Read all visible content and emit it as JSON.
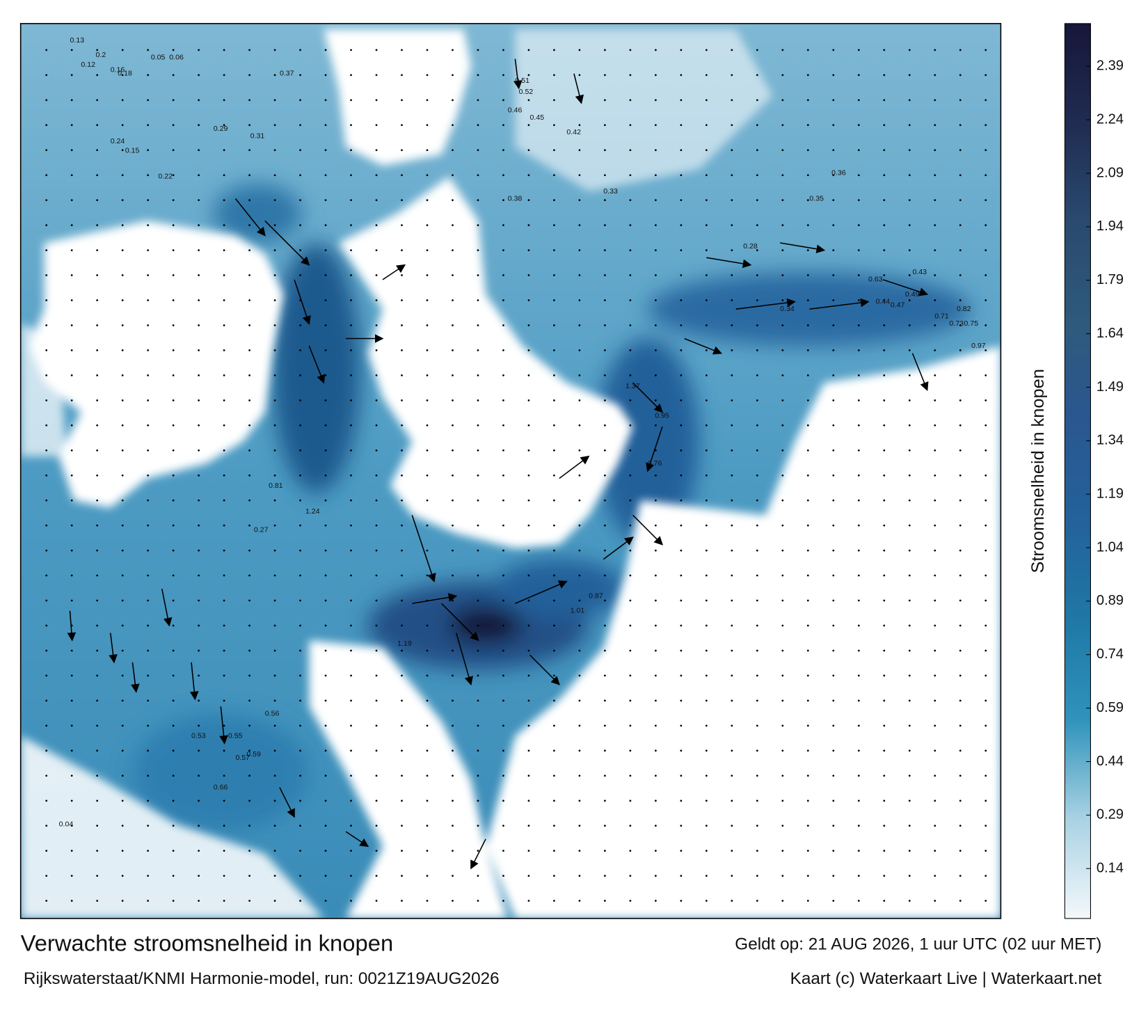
{
  "title": "Verwachte stroomsnelheid in knopen",
  "subtitle": "Rijkswaterstaat/KNMI Harmonie-model, run: 0021Z19AUG2026",
  "valid_time": "Geldt op: 21 AUG 2026, 1 uur UTC (02 uur MET)",
  "credit": "Kaart (c) Waterkaart Live | Waterkaart.net",
  "colorbar": {
    "label": "Stroomsnelheid in knopen",
    "lim": [
      0,
      2.51
    ],
    "ticks": [
      0.14,
      0.29,
      0.44,
      0.59,
      0.74,
      0.89,
      1.04,
      1.19,
      1.34,
      1.49,
      1.64,
      1.79,
      1.94,
      2.09,
      2.24,
      2.39
    ],
    "colors": [
      "#f4f8fb",
      "#a9d2e3",
      "#2f93bb",
      "#1f78a6",
      "#23629a",
      "#2a5790",
      "#2e5a7c",
      "#2a4a6f",
      "#202c52",
      "#16163a"
    ]
  },
  "map": {
    "labels": [
      0.13,
      0.2,
      0.12,
      0.16,
      0.18,
      0.05,
      0.06,
      0.24,
      0.15,
      0.22,
      0.29,
      0.31,
      0.37,
      0.33,
      0.38,
      0.51,
      0.52,
      0.46,
      0.42,
      0.45,
      0.36,
      0.35,
      0.28,
      0.34,
      0.43,
      0.44,
      0.47,
      0.49,
      0.63,
      0.71,
      0.73,
      0.82,
      0.75,
      0.97,
      1.37,
      1.24,
      0.81,
      0.95,
      0.76,
      1.19,
      1.01,
      0.87,
      0.66,
      0.53,
      0.56,
      0.55,
      0.57,
      0.59,
      0.27,
      0.04
    ]
  }
}
